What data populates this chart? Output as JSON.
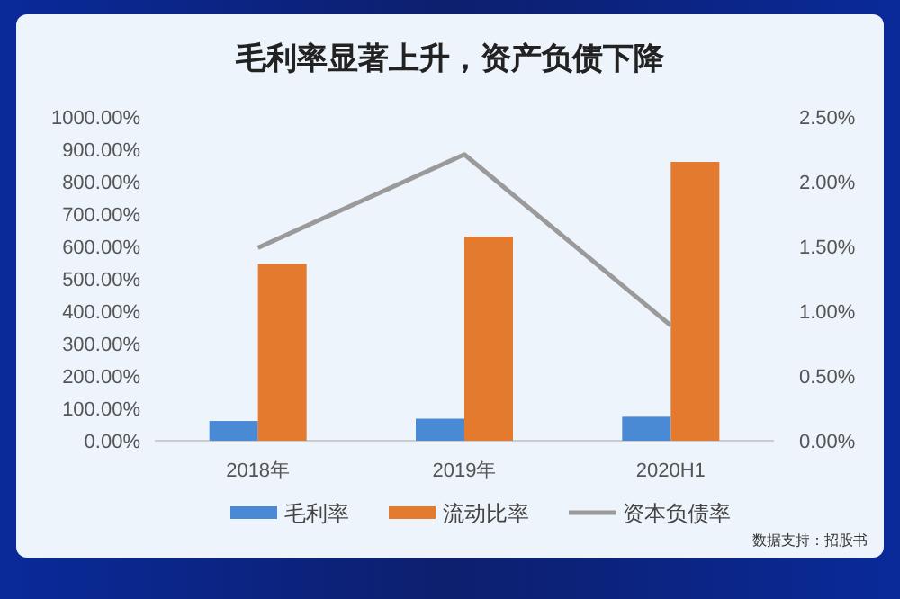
{
  "chart_data": {
    "type": "bar",
    "title": "毛利率显著上升，资产负债下降",
    "categories": [
      "2018年",
      "2019年",
      "2020H1"
    ],
    "series": [
      {
        "name": "毛利率",
        "color": "#4a8ad4",
        "values": [
          61,
          68,
          74
        ]
      },
      {
        "name": "流动比率",
        "color": "#e37a2e",
        "values": [
          546,
          630,
          861
        ]
      },
      {
        "name": "资本负债率",
        "type": "line",
        "axis": "y2",
        "color": "#9a9a9a",
        "values": [
          1.49,
          2.21,
          0.89
        ]
      }
    ],
    "ylim": [
      0,
      1000
    ],
    "yticks": [
      {
        "value": 0,
        "label": "0.00%"
      },
      {
        "value": 100,
        "label": "100.00%"
      },
      {
        "value": 200,
        "label": "200.00%"
      },
      {
        "value": 300,
        "label": "300.00%"
      },
      {
        "value": 400,
        "label": "400.00%"
      },
      {
        "value": 500,
        "label": "500.00%"
      },
      {
        "value": 600,
        "label": "600.00%"
      },
      {
        "value": 700,
        "label": "700.00%"
      },
      {
        "value": 800,
        "label": "800.00%"
      },
      {
        "value": 900,
        "label": "900.00%"
      },
      {
        "value": 1000,
        "label": "1000.00%"
      }
    ],
    "y2lim": [
      0,
      2.5
    ],
    "y2ticks": [
      {
        "value": 0,
        "label": "0.00%"
      },
      {
        "value": 0.5,
        "label": "0.50%"
      },
      {
        "value": 1,
        "label": "1.00%"
      },
      {
        "value": 1.5,
        "label": "1.50%"
      },
      {
        "value": 2,
        "label": "2.00%"
      },
      {
        "value": 2.5,
        "label": "2.50%"
      }
    ],
    "legend": "bottom",
    "grid": false,
    "annotations": [
      "数据支持：招股书"
    ]
  }
}
